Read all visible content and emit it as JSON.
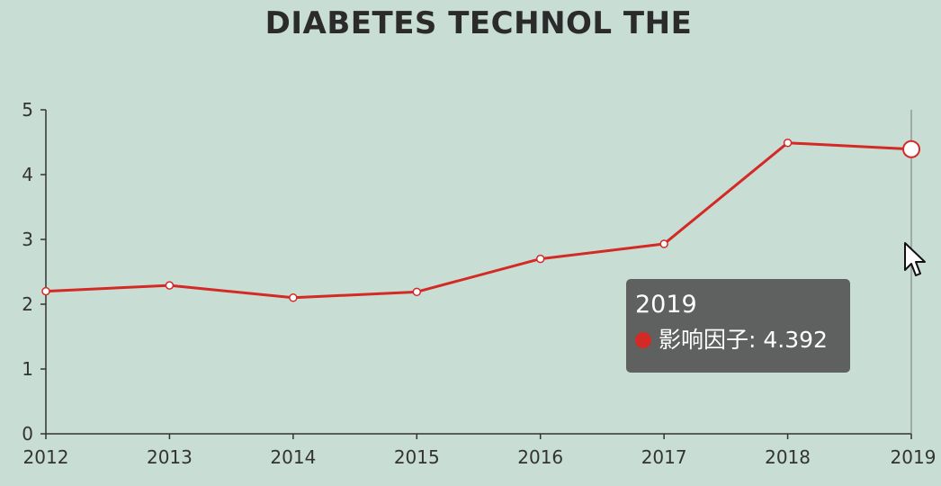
{
  "colors": {
    "background": "#c8ddd4",
    "line": "#d42a26",
    "axis": "#333333",
    "tooltip_bg": "#555555"
  },
  "chart_data": {
    "type": "line",
    "title": "DIABETES TECHNOL THE",
    "categories": [
      "2012",
      "2013",
      "2014",
      "2015",
      "2016",
      "2017",
      "2018",
      "2019"
    ],
    "series": [
      {
        "name": "影响因子",
        "values": [
          2.2,
          2.29,
          2.1,
          2.19,
          2.7,
          2.93,
          4.49,
          4.392
        ]
      }
    ],
    "xlabel": "",
    "ylabel": "",
    "ylim": [
      0,
      5
    ],
    "yticks": [
      "0",
      "1",
      "2",
      "3",
      "4",
      "5"
    ],
    "grid": false,
    "highlighted_index": 7
  },
  "tooltip": {
    "title": "2019",
    "series_name": "影响因子",
    "value": "4.392",
    "text": "影响因子: 4.392"
  }
}
